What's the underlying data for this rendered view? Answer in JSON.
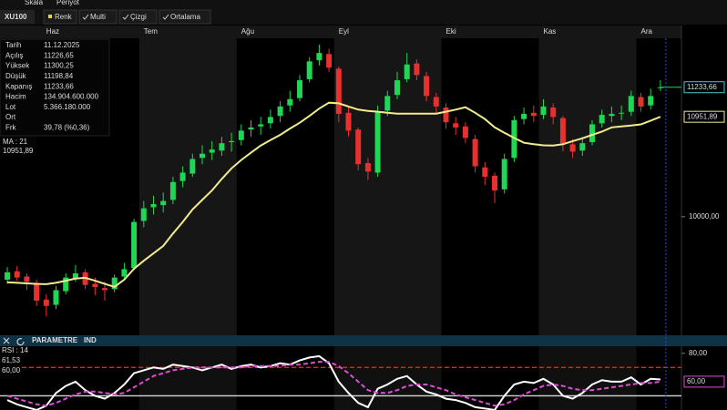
{
  "menu": [
    "Skala",
    "Periyot"
  ],
  "toolbar": {
    "buttons": [
      {
        "label": "Renk",
        "icon": "square"
      },
      {
        "label": "Multi",
        "icon": "check"
      },
      {
        "label": "Çizgi",
        "icon": "check"
      },
      {
        "label": "Ortalama",
        "icon": "check"
      }
    ]
  },
  "info_panel": {
    "rows": [
      {
        "label": "Tarih",
        "value": "11.12.2025"
      },
      {
        "label": "Açılış",
        "value": "11226,65"
      },
      {
        "label": "Yüksek",
        "value": "11300,25",
        "color": "#2ee65a"
      },
      {
        "label": "Düşük",
        "value": "11198,84",
        "color": "#ff3b30"
      },
      {
        "label": "Kapanış",
        "value": "11233,66"
      },
      {
        "label": "Hacim",
        "value": "134.904.600.000"
      },
      {
        "label": "Lot",
        "value": "5.366.180.000"
      },
      {
        "label": "Ort"
      },
      {
        "label": "Frk",
        "value": "39,78 (%0,36)",
        "color": "#2ee65a"
      }
    ]
  },
  "panel_bar": {
    "labels": [
      "PARAMETRE",
      "IND"
    ]
  },
  "chart_data": [
    {
      "type": "candlestick",
      "title": "XU100",
      "categories": [
        null,
        null,
        null,
        null,
        "Haz",
        null,
        null,
        null,
        null,
        null,
        null,
        null,
        null,
        null,
        "Tem",
        null,
        null,
        null,
        null,
        null,
        null,
        null,
        null,
        null,
        "Ağu",
        null,
        null,
        null,
        null,
        null,
        null,
        null,
        null,
        null,
        "Eyl",
        null,
        null,
        null,
        null,
        null,
        null,
        null,
        null,
        null,
        null,
        "Eki",
        null,
        null,
        null,
        null,
        null,
        null,
        null,
        null,
        null,
        "Kas",
        null,
        null,
        null,
        null,
        null,
        null,
        null,
        null,
        null,
        "Ara",
        null,
        null
      ],
      "open": [
        9400,
        9480,
        9430,
        9370,
        9210,
        9160,
        9290,
        9410,
        9470,
        9360,
        9320,
        9310,
        9430,
        9510,
        9960,
        10090,
        10110,
        10160,
        10340,
        10410,
        10560,
        10610,
        10630,
        10710,
        10730,
        10830,
        10860,
        10890,
        10960,
        11060,
        11130,
        11310,
        11490,
        11550,
        11410,
        10990,
        10830,
        10510,
        10420,
        11010,
        11160,
        11310,
        11460,
        11340,
        11140,
        11040,
        10890,
        10860,
        10740,
        10470,
        10390,
        10260,
        10560,
        10930,
        10990,
        10970,
        11040,
        10940,
        10690,
        10630,
        10710,
        10890,
        10960,
        10990,
        11000,
        11140,
        11060,
        11226.65
      ],
      "high": [
        9520,
        9530,
        9460,
        9400,
        9260,
        9340,
        9460,
        9540,
        9500,
        9420,
        9380,
        9450,
        9560,
        9980,
        10150,
        10200,
        10230,
        10380,
        10480,
        10600,
        10680,
        10720,
        10760,
        10800,
        10880,
        10920,
        10950,
        11020,
        11100,
        11200,
        11350,
        11520,
        11640,
        11600,
        11430,
        11050,
        10850,
        10560,
        11060,
        11200,
        11380,
        11560,
        11500,
        11380,
        11180,
        11080,
        10950,
        10900,
        10780,
        10520,
        10420,
        10600,
        10960,
        11040,
        11060,
        11120,
        11080,
        10960,
        10740,
        10760,
        10920,
        11020,
        11050,
        11060,
        11200,
        11180,
        11220,
        11300.25
      ],
      "low": [
        9360,
        9390,
        9300,
        9150,
        9050,
        9120,
        9260,
        9380,
        9310,
        9250,
        9200,
        9280,
        9400,
        9490,
        9900,
        10020,
        10040,
        10120,
        10280,
        10380,
        10500,
        10540,
        10580,
        10620,
        10680,
        10760,
        10780,
        10840,
        10900,
        11000,
        11100,
        11280,
        11440,
        11380,
        10900,
        10760,
        10440,
        10350,
        10380,
        10960,
        11120,
        11280,
        11300,
        11100,
        10980,
        10840,
        10780,
        10700,
        10420,
        10300,
        10130,
        10220,
        10520,
        10880,
        10900,
        10930,
        10880,
        10620,
        10560,
        10580,
        10680,
        10850,
        10900,
        10920,
        10960,
        11000,
        11020,
        11198.84
      ],
      "close": [
        9470,
        9420,
        9380,
        9200,
        9150,
        9300,
        9420,
        9460,
        9350,
        9330,
        9300,
        9420,
        9500,
        9950,
        10080,
        10120,
        10150,
        10330,
        10420,
        10550,
        10600,
        10640,
        10700,
        10720,
        10820,
        10850,
        10880,
        10950,
        11050,
        11120,
        11300,
        11480,
        11560,
        11420,
        10980,
        10820,
        10500,
        10430,
        11000,
        11150,
        11300,
        11450,
        11350,
        11150,
        11050,
        10900,
        10850,
        10750,
        10480,
        10380,
        10250,
        10550,
        10920,
        10980,
        10960,
        11050,
        10950,
        10700,
        10620,
        10700,
        10880,
        10970,
        10980,
        10990,
        11150,
        11050,
        11150,
        11233.66
      ],
      "up_color": "#1fd655",
      "down_color": "#e8312f",
      "series": [
        {
          "name": "MA : 21",
          "color": "#f3ec8c",
          "values": [
            9374,
            9370,
            9365,
            9360,
            9357,
            9370,
            9390,
            9410,
            9418,
            9390,
            9360,
            9331,
            9400,
            9504,
            9580,
            9650,
            9722,
            9840,
            9950,
            10069,
            10160,
            10250,
            10360,
            10460,
            10540,
            10610,
            10678,
            10730,
            10780,
            10840,
            10895,
            10960,
            11030,
            11086,
            11080,
            11050,
            11020,
            11008,
            11000,
            10990,
            10982,
            10982,
            10982,
            10982,
            10982,
            11000,
            11020,
            11043,
            10990,
            10930,
            10851,
            10800,
            10750,
            10704,
            10690,
            10680,
            10678,
            10690,
            10720,
            10747,
            10780,
            10810,
            10851,
            10860,
            10868,
            10880,
            10915,
            10951.89
          ]
        }
      ],
      "ylim": [
        8870,
        11700
      ],
      "yticks": [
        {
          "value": 10000,
          "label": "10000,00"
        }
      ],
      "price_labels": [
        {
          "value": 11233.66,
          "label": "11233,66",
          "color": "#4fc3d9"
        },
        {
          "value": 10951.89,
          "label": "10951,89",
          "color": "#f3ec8c"
        }
      ]
    },
    {
      "type": "line",
      "title": "RSI : 14",
      "series": [
        {
          "color": "#ffffff",
          "values": [
            47,
            44,
            42,
            40,
            43,
            52,
            57,
            60,
            54,
            50,
            48,
            52,
            58,
            66,
            68,
            70,
            69,
            72,
            71,
            70,
            68,
            70,
            72,
            69,
            71,
            72,
            70,
            71,
            73,
            72,
            75,
            77,
            78,
            73,
            60,
            52,
            45,
            42,
            55,
            58,
            62,
            64,
            58,
            53,
            51,
            48,
            47,
            45,
            42,
            41,
            40,
            50,
            58,
            60,
            59,
            62,
            58,
            50,
            48,
            52,
            58,
            61,
            60,
            60,
            63,
            58,
            62,
            61.53
          ]
        },
        {
          "color": "#e04cd6",
          "dash": true,
          "values": [
            50,
            48,
            46,
            44,
            43,
            45,
            48,
            51,
            53,
            53,
            52,
            51,
            52,
            56,
            60,
            64,
            66,
            68,
            69,
            70,
            70,
            70,
            70,
            70,
            70,
            71,
            71,
            71,
            71,
            72,
            72,
            73,
            74,
            74,
            71,
            66,
            60,
            54,
            52,
            52,
            54,
            57,
            58,
            58,
            56,
            54,
            51,
            49,
            47,
            45,
            43,
            44,
            47,
            51,
            54,
            57,
            58,
            57,
            55,
            54,
            54,
            55,
            56,
            57,
            58,
            59,
            59,
            60
          ]
        }
      ],
      "readouts": [
        {
          "value": 61.53,
          "label": "61,53",
          "color": "#ffffff"
        },
        {
          "value": 60,
          "label": "60,00",
          "color": "#e04cd6"
        }
      ],
      "levels": [
        {
          "value": 70,
          "color": "#e02424",
          "dash": true
        },
        {
          "value": 50,
          "color": "#d8d8d8"
        }
      ],
      "ylim": [
        40,
        85
      ],
      "yticks": [
        {
          "value": 80,
          "label": "80,00"
        }
      ],
      "price_labels": [
        {
          "value": 60,
          "label": "60,00",
          "color": "#e04cd6"
        }
      ]
    }
  ]
}
